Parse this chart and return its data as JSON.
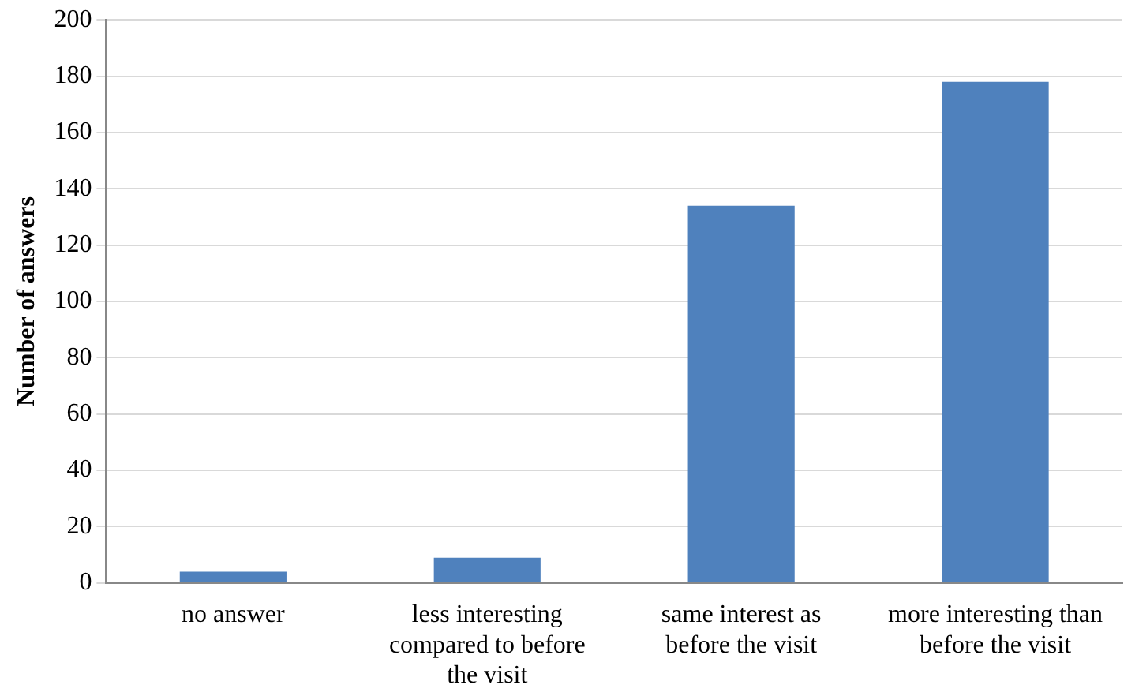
{
  "chart_data": {
    "type": "bar",
    "ylabel": "Number of answers",
    "categories": [
      "no answer",
      "less interesting compared to before the visit",
      "same interest as before the visit",
      "more interesting than before the visit"
    ],
    "values": [
      4,
      9,
      134,
      178
    ],
    "color": "#4f81bd",
    "ylim": [
      0,
      200
    ],
    "yticks": [
      0,
      20,
      40,
      60,
      80,
      100,
      120,
      140,
      160,
      180,
      200
    ],
    "grid": "y"
  }
}
